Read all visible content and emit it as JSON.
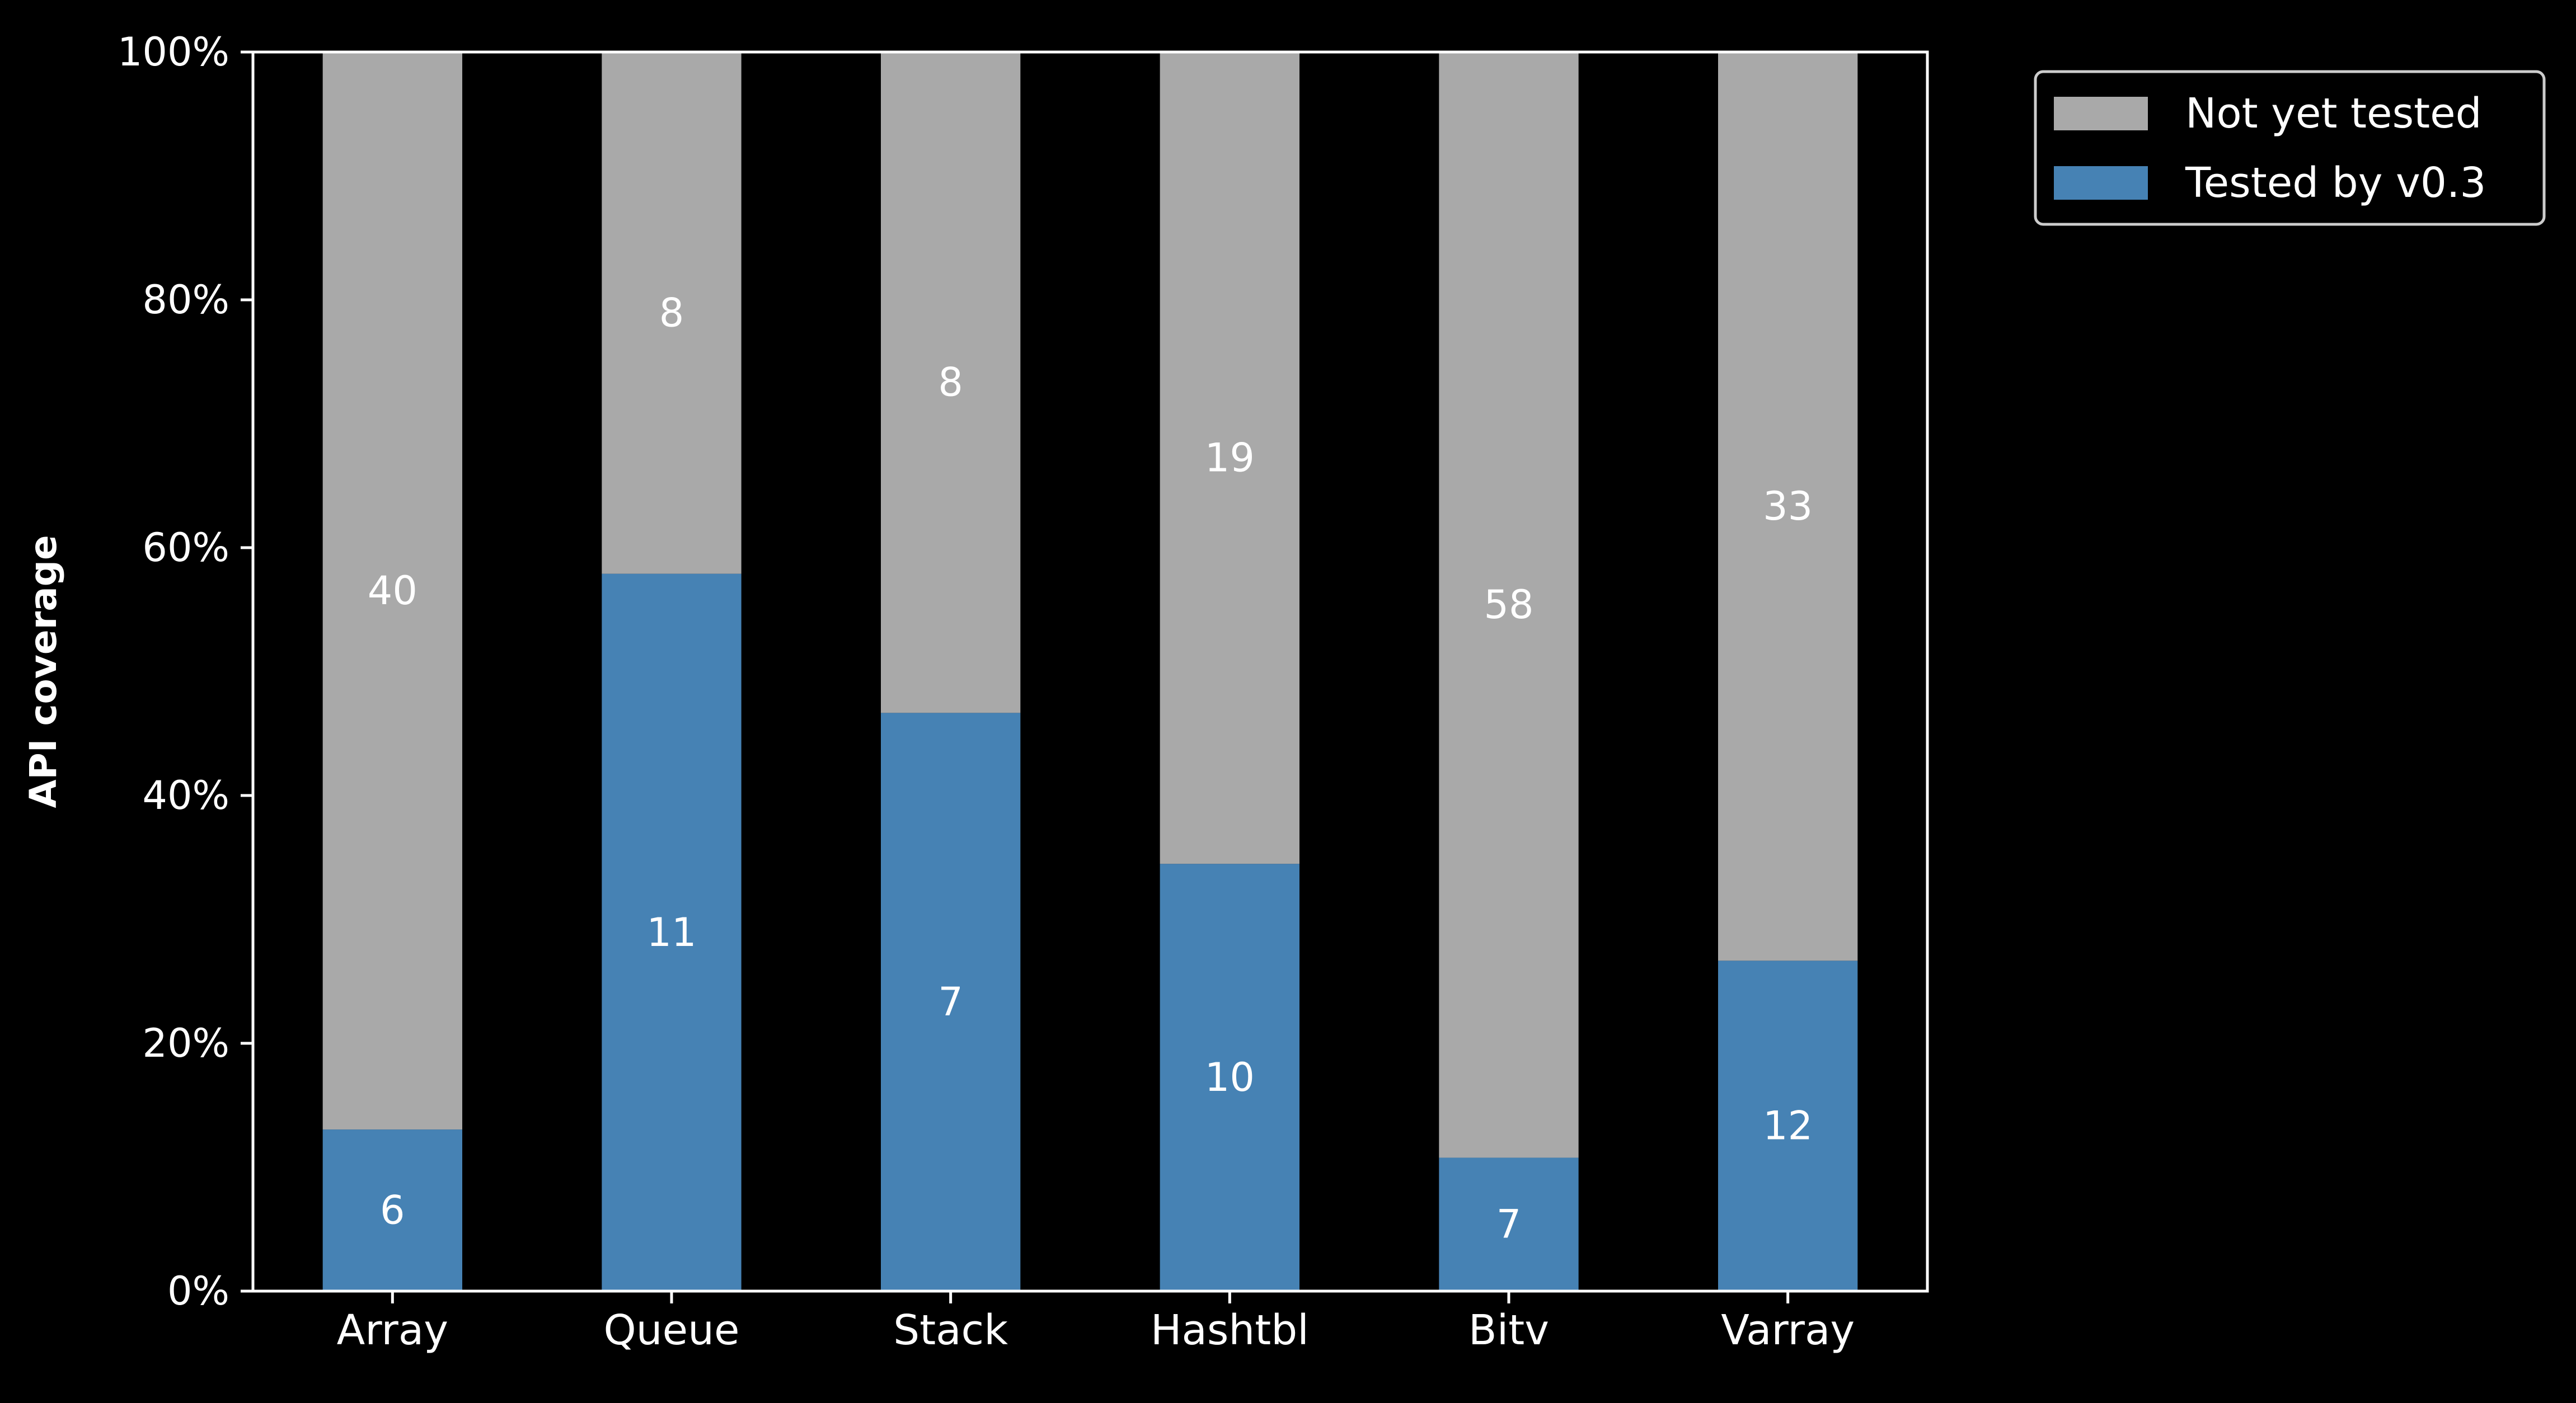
{
  "chart_data": {
    "type": "bar",
    "stacked": true,
    "normalized": true,
    "title": "",
    "xlabel": "",
    "ylabel": "API coverage",
    "ylim": [
      0,
      100
    ],
    "yticks": [
      "0%",
      "20%",
      "40%",
      "60%",
      "80%",
      "100%"
    ],
    "ytick_values": [
      0,
      20,
      40,
      60,
      80,
      100
    ],
    "categories": [
      "Array",
      "Queue",
      "Stack",
      "Hashtbl",
      "Bitv",
      "Varray"
    ],
    "series": [
      {
        "name": "Tested by v0.3",
        "color": "#4682b4",
        "values": [
          6,
          11,
          7,
          10,
          7,
          12
        ]
      },
      {
        "name": "Not yet tested",
        "color": "#a9a9a9",
        "values": [
          40,
          8,
          8,
          19,
          58,
          33
        ]
      }
    ],
    "legend": {
      "position": "outside-top-right",
      "entries": [
        "Not yet tested",
        "Tested by v0.3"
      ]
    },
    "grid": false
  },
  "colors": {
    "background": "#000000",
    "axes": "#ffffff",
    "text": "#ffffff",
    "tested": "#4682b4",
    "untested": "#a9a9a9"
  }
}
